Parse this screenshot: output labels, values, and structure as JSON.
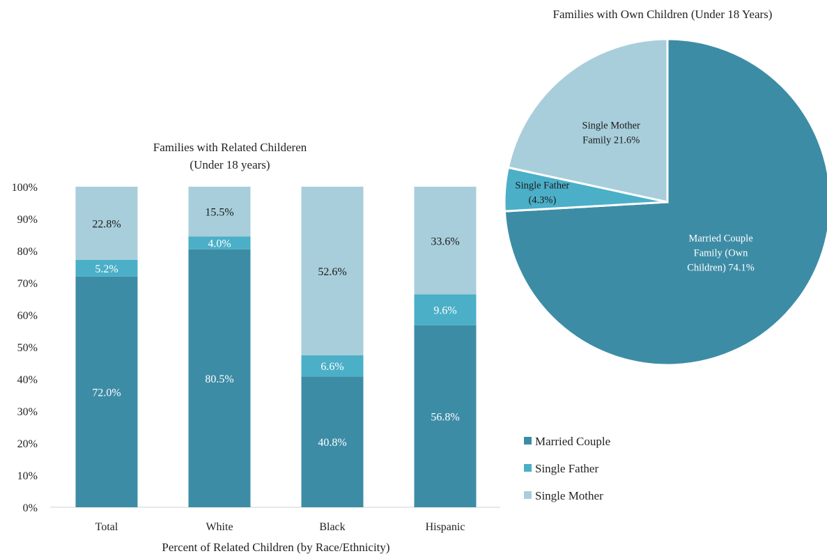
{
  "chart_data": [
    {
      "type": "bar",
      "stacked": true,
      "title_lines": [
        "Families with Related Childeren",
        "(Under 18 years)"
      ],
      "xlabel": "Percent of Related Children (by Race/Ethnicity)",
      "ylim": [
        0,
        100
      ],
      "yticks": [
        "0%",
        "10%",
        "20%",
        "30%",
        "40%",
        "50%",
        "60%",
        "70%",
        "80%",
        "90%",
        "100%"
      ],
      "categories": [
        "Total",
        "White",
        "Black",
        "Hispanic"
      ],
      "series": [
        {
          "name": "Married Couple",
          "color": "#3d8ca6",
          "values": [
            72.0,
            80.5,
            40.8,
            56.8
          ],
          "labels": [
            "72.0%",
            "80.5%",
            "40.8%",
            "56.8%"
          ]
        },
        {
          "name": "Single Father",
          "color": "#4bafc8",
          "values": [
            5.2,
            4.0,
            6.6,
            9.6
          ],
          "labels": [
            "5.2%",
            "4.0%",
            "6.6%",
            "9.6%"
          ]
        },
        {
          "name": "Single Mother",
          "color": "#a8cedb",
          "values": [
            22.8,
            15.5,
            52.6,
            33.6
          ],
          "labels": [
            "22.8%",
            "15.5%",
            "52.6%",
            "33.6%"
          ]
        }
      ],
      "legend": {
        "placement": "right",
        "items": [
          "Married Couple",
          "Single Father",
          "Single Mother"
        ]
      }
    },
    {
      "type": "pie",
      "title": "Families with Own Children (Under 18 Years)",
      "slices": [
        {
          "label_lines": [
            "Married Couple",
            "Family  (Own",
            "Children) 74.1%"
          ],
          "value": 74.1,
          "color": "#3d8ca6"
        },
        {
          "label_lines": [
            "Single Father",
            "(4.3%)"
          ],
          "value": 4.3,
          "color": "#4bafc8"
        },
        {
          "label_lines": [
            "Single Mother",
            "Family 21.6%"
          ],
          "value": 21.6,
          "color": "#a8cedb"
        }
      ]
    }
  ]
}
